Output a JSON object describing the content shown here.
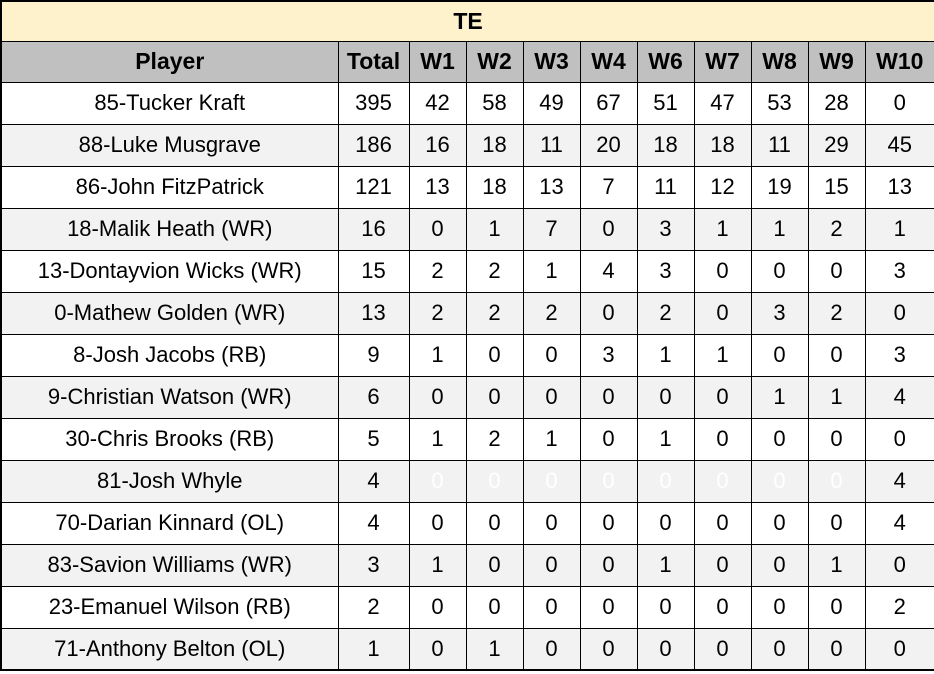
{
  "table": {
    "title": "TE",
    "columns": [
      "Player",
      "Total",
      "W1",
      "W2",
      "W3",
      "W4",
      "W6",
      "W7",
      "W8",
      "W9",
      "W10"
    ],
    "colors": {
      "title_band": "#fdf2cc",
      "header_bg": "#c0c0c0",
      "row_alt_bg": "#f2f2f2",
      "highlight_yellow": "#ffff00",
      "highlight_red": "#ff0000",
      "highlight_dark": "#3b3b3b",
      "grid_border": "#000000"
    },
    "rows": [
      {
        "player": "85-Tucker Kraft",
        "total": "395",
        "weeks": [
          {
            "v": "42"
          },
          {
            "v": "58"
          },
          {
            "v": "49"
          },
          {
            "v": "67"
          },
          {
            "v": "51"
          },
          {
            "v": "47"
          },
          {
            "v": "53"
          },
          {
            "v": "28",
            "hl": "yellow"
          },
          {
            "v": "0",
            "hl": "red"
          }
        ]
      },
      {
        "player": "88-Luke Musgrave",
        "total": "186",
        "weeks": [
          {
            "v": "16"
          },
          {
            "v": "18"
          },
          {
            "v": "11"
          },
          {
            "v": "20"
          },
          {
            "v": "18"
          },
          {
            "v": "18"
          },
          {
            "v": "11"
          },
          {
            "v": "29"
          },
          {
            "v": "45"
          }
        ]
      },
      {
        "player": "86-John FitzPatrick",
        "total": "121",
        "weeks": [
          {
            "v": "13"
          },
          {
            "v": "18"
          },
          {
            "v": "13"
          },
          {
            "v": "7"
          },
          {
            "v": "11"
          },
          {
            "v": "12"
          },
          {
            "v": "19"
          },
          {
            "v": "15"
          },
          {
            "v": "13"
          }
        ]
      },
      {
        "player": "18-Malik Heath (WR)",
        "total": "16",
        "weeks": [
          {
            "v": "0"
          },
          {
            "v": "1"
          },
          {
            "v": "7"
          },
          {
            "v": "0"
          },
          {
            "v": "3"
          },
          {
            "v": "1"
          },
          {
            "v": "1"
          },
          {
            "v": "2"
          },
          {
            "v": "1"
          }
        ]
      },
      {
        "player": "13-Dontayvion Wicks (WR)",
        "total": "15",
        "weeks": [
          {
            "v": "2"
          },
          {
            "v": "2"
          },
          {
            "v": "1"
          },
          {
            "v": "4"
          },
          {
            "v": "3",
            "hl": "yellow"
          },
          {
            "v": "0",
            "hl": "yellow"
          },
          {
            "v": "0",
            "hl": "red"
          },
          {
            "v": "0",
            "hl": "red"
          },
          {
            "v": "3"
          }
        ]
      },
      {
        "player": "0-Mathew Golden (WR)",
        "total": "13",
        "weeks": [
          {
            "v": "2"
          },
          {
            "v": "2"
          },
          {
            "v": "2"
          },
          {
            "v": "0"
          },
          {
            "v": "2"
          },
          {
            "v": "0"
          },
          {
            "v": "3"
          },
          {
            "v": "2",
            "hl": "yellow"
          },
          {
            "v": "0",
            "hl": "red"
          }
        ]
      },
      {
        "player": "8-Josh Jacobs (RB)",
        "total": "9",
        "weeks": [
          {
            "v": "1"
          },
          {
            "v": "0"
          },
          {
            "v": "0"
          },
          {
            "v": "3"
          },
          {
            "v": "1"
          },
          {
            "v": "1"
          },
          {
            "v": "0"
          },
          {
            "v": "0"
          },
          {
            "v": "3"
          }
        ]
      },
      {
        "player": "9-Christian Watson (WR)",
        "total": "6",
        "weeks": [
          {
            "v": "0",
            "hl": "red"
          },
          {
            "v": "0",
            "hl": "red"
          },
          {
            "v": "0",
            "hl": "red"
          },
          {
            "v": "0",
            "hl": "red"
          },
          {
            "v": "0",
            "hl": "red"
          },
          {
            "v": "0",
            "hl": "red"
          },
          {
            "v": "1"
          },
          {
            "v": "1"
          },
          {
            "v": "4"
          }
        ]
      },
      {
        "player": "30-Chris Brooks (RB)",
        "total": "5",
        "weeks": [
          {
            "v": "1"
          },
          {
            "v": "2"
          },
          {
            "v": "1"
          },
          {
            "v": "0"
          },
          {
            "v": "1"
          },
          {
            "v": "0"
          },
          {
            "v": "0"
          },
          {
            "v": "0"
          },
          {
            "v": "0"
          }
        ]
      },
      {
        "player": "81-Josh Whyle",
        "total": "4",
        "weeks": [
          {
            "v": "0",
            "hl": "dark"
          },
          {
            "v": "0",
            "hl": "dark"
          },
          {
            "v": "0",
            "hl": "dark"
          },
          {
            "v": "0",
            "hl": "dark"
          },
          {
            "v": "0",
            "hl": "dark"
          },
          {
            "v": "0",
            "hl": "dark"
          },
          {
            "v": "0",
            "hl": "dark"
          },
          {
            "v": "0",
            "hl": "dark"
          },
          {
            "v": "4"
          }
        ]
      },
      {
        "player": "70-Darian Kinnard (OL)",
        "total": "4",
        "weeks": [
          {
            "v": "0"
          },
          {
            "v": "0"
          },
          {
            "v": "0"
          },
          {
            "v": "0"
          },
          {
            "v": "0"
          },
          {
            "v": "0"
          },
          {
            "v": "0"
          },
          {
            "v": "0"
          },
          {
            "v": "4"
          }
        ]
      },
      {
        "player": "83-Savion Williams (WR)",
        "total": "3",
        "weeks": [
          {
            "v": "1"
          },
          {
            "v": "0"
          },
          {
            "v": "0"
          },
          {
            "v": "0"
          },
          {
            "v": "1"
          },
          {
            "v": "0"
          },
          {
            "v": "0"
          },
          {
            "v": "1"
          },
          {
            "v": "0"
          }
        ]
      },
      {
        "player": "23-Emanuel Wilson (RB)",
        "total": "2",
        "weeks": [
          {
            "v": "0"
          },
          {
            "v": "0"
          },
          {
            "v": "0"
          },
          {
            "v": "0"
          },
          {
            "v": "0"
          },
          {
            "v": "0"
          },
          {
            "v": "0"
          },
          {
            "v": "0"
          },
          {
            "v": "2"
          }
        ]
      },
      {
        "player": "71-Anthony Belton (OL)",
        "total": "1",
        "weeks": [
          {
            "v": "0"
          },
          {
            "v": "1"
          },
          {
            "v": "0"
          },
          {
            "v": "0",
            "hl": "red"
          },
          {
            "v": "0",
            "hl": "red"
          },
          {
            "v": "0",
            "hl": "red"
          },
          {
            "v": "0"
          },
          {
            "v": "0"
          },
          {
            "v": "0"
          }
        ]
      }
    ]
  }
}
